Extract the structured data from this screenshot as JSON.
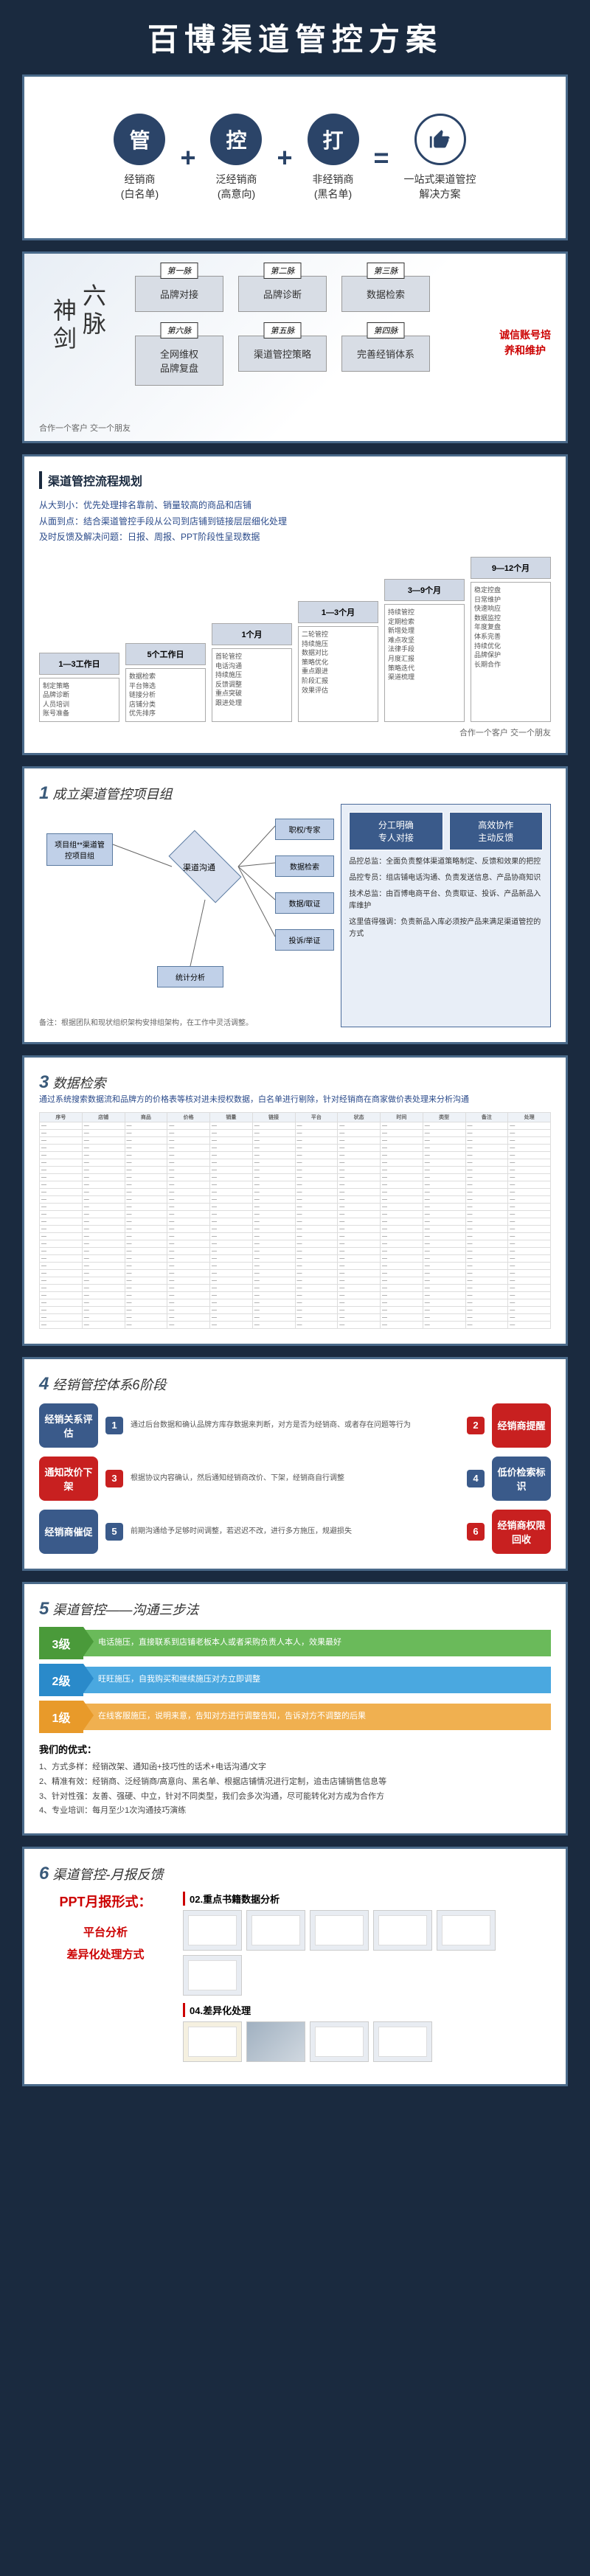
{
  "title": "百博渠道管控方案",
  "formula": {
    "items": [
      {
        "char": "管",
        "label": "经销商\n(白名单)"
      },
      {
        "char": "控",
        "label": "泛经销商\n(高意向)"
      },
      {
        "char": "打",
        "label": "非经销商\n(黑名单)"
      }
    ],
    "result": "一站式渠道管控\n解决方案"
  },
  "sixSwords": {
    "title1": "神剑",
    "title2": "六脉",
    "corner": "诚信账号培\n养和维护",
    "footer": "合作一个客户  交一个朋友",
    "cells": [
      {
        "tag": "第一脉",
        "text": "品牌对接"
      },
      {
        "tag": "第二脉",
        "text": "品牌诊断"
      },
      {
        "tag": "第三脉",
        "text": "数据检索"
      },
      {
        "tag": "第六脉",
        "text": "全网维权\n品牌复盘"
      },
      {
        "tag": "第五脉",
        "text": "渠道管控策略"
      },
      {
        "tag": "第四脉",
        "text": "完善经销体系"
      }
    ]
  },
  "timeline": {
    "title": "渠道管控流程规划",
    "desc": [
      "从大到小：优先处理排名靠前、销量较高的商品和店铺",
      "从面到点：结合渠道管控手段从公司到店铺到链接层层细化处理",
      "及时反馈及解决问题：日报、周报、PPT阶段性呈现数据"
    ],
    "footer": "合作一个客户  交一个朋友",
    "cols": [
      {
        "head": "1—3工作日",
        "body": "制定策略\n品牌诊断\n人员培训\n账号准备"
      },
      {
        "head": "5个工作日",
        "body": "数据检索\n平台筛选\n链接分析\n店铺分类\n优先排序"
      },
      {
        "head": "1个月",
        "body": "首轮管控\n电话沟通\n持续施压\n反馈调整\n重点突破\n跟进处理"
      },
      {
        "head": "1—3个月",
        "body": "二轮管控\n持续施压\n数据对比\n策略优化\n重点跟进\n阶段汇报\n效果评估"
      },
      {
        "head": "3—9个月",
        "body": "持续管控\n定期检索\n新增处理\n难点攻坚\n法律手段\n月度汇报\n策略迭代\n渠道梳理"
      },
      {
        "head": "9—12个月",
        "body": "稳定控盘\n日常维护\n快速响应\n数据监控\n年度复盘\n体系完善\n持续优化\n品牌保护\n长期合作"
      }
    ]
  },
  "flowchart": {
    "title": "成立渠道管控项目组",
    "num": "1",
    "rightHead": [
      "分工明确\n专人对接",
      "高效协作\n主动反馈"
    ],
    "rightText": [
      "品控总监：全面负责整体渠道策略制定、反馈和效果的把控",
      "品控专员：组店铺电话沟通、负责发送信息、产品协商知识",
      "技术总监：由百博电商平台、负责取证、投诉、产品新品入库维护",
      "这里值得强调：负责新品入库必须按产品来满足渠道管控的方式"
    ],
    "note": "备注：根据团队和现状组织架构安排组架构，在工作中灵活调整。",
    "boxes": {
      "start": "项目组**渠道管控项目组",
      "diamond": "渠道沟通",
      "r1": "职权/专家",
      "r2": "数据检索",
      "r3": "数据/取证",
      "r4": "投诉/举证",
      "bottom": "统计分析"
    }
  },
  "datasearch": {
    "num": "3",
    "title": "数据检索",
    "desc": "通过系统搜索数据流和品牌方的价格表等核对进未授权数据，白名单进行剔除，针对经销商在商家做价表处理来分析沟通",
    "headers": [
      "序号",
      "店铺",
      "商品",
      "价格",
      "销量",
      "链接",
      "平台",
      "状态",
      "时间",
      "类型",
      "备注",
      "处理"
    ],
    "rowCount": 28
  },
  "stages6": {
    "num": "4",
    "title": "经销管控体系6阶段",
    "rows": [
      {
        "left": {
          "text": "经销关系评估",
          "cls": "blue"
        },
        "leftNum": "1",
        "leftDesc": "通过后台数据和确认品牌方库存数据来判断，对方是否为经销商、或者存在问题等行为",
        "right": {
          "text": "经销商提醒",
          "cls": "red"
        },
        "rightNum": "2",
        "rightDesc": ""
      },
      {
        "left": {
          "text": "通知改价下架",
          "cls": "red"
        },
        "leftNum": "3",
        "leftDesc": "根据协议内容确认，然后通知经销商改价、下架，经销商自行调整",
        "right": {
          "text": "低价检索标识",
          "cls": "blue"
        },
        "rightNum": "4",
        "rightDesc": ""
      },
      {
        "left": {
          "text": "经销商催促",
          "cls": "blue"
        },
        "leftNum": "5",
        "leftDesc": "前期沟通给予足够时间调整，若迟迟不改，进行多方施压，规避损失",
        "right": {
          "text": "经销商权限回收",
          "cls": "red"
        },
        "rightNum": "6",
        "rightDesc": ""
      }
    ]
  },
  "threeStep": {
    "num": "5",
    "title": "渠道管控——沟通三步法",
    "steps": [
      {
        "cls": "green",
        "head": "3级",
        "body": "电话施压，直接联系到店铺老板本人或者采购负责人本人，效果最好"
      },
      {
        "cls": "blue",
        "head": "2级",
        "body": "旺旺施压，自我购买和继续施压对方立即调整"
      },
      {
        "cls": "orange",
        "head": "1级",
        "body": "在线客服施压，说明来意，告知对方进行调整告知，告诉对方不调整的后果"
      }
    ],
    "advTitle": "我们的优式：",
    "advList": [
      "1、方式多样：经销改架、通知函+技巧性的话术+电话沟通/文字",
      "2、精准有效：经销商、泛经销商/高意向、黑名单、根据店铺情况进行定制，追击店铺销售信息等",
      "3、针对性强：友善、强硬、中立，针对不同类型，我们会多次沟通，尽可能转化对方成为合作方",
      "4、专业培训：每月至少1次沟通技巧演练"
    ]
  },
  "report": {
    "num": "6",
    "title": "渠道管控-月报反馈",
    "pptTitle": "PPT月报形式：",
    "pptSubs": [
      "平台分析",
      "差异化处理方式"
    ],
    "sections": [
      {
        "title": "02.重点书籍数据分析",
        "thumbs": 6
      },
      {
        "title": "04.差异化处理",
        "thumbs": 4
      }
    ]
  }
}
